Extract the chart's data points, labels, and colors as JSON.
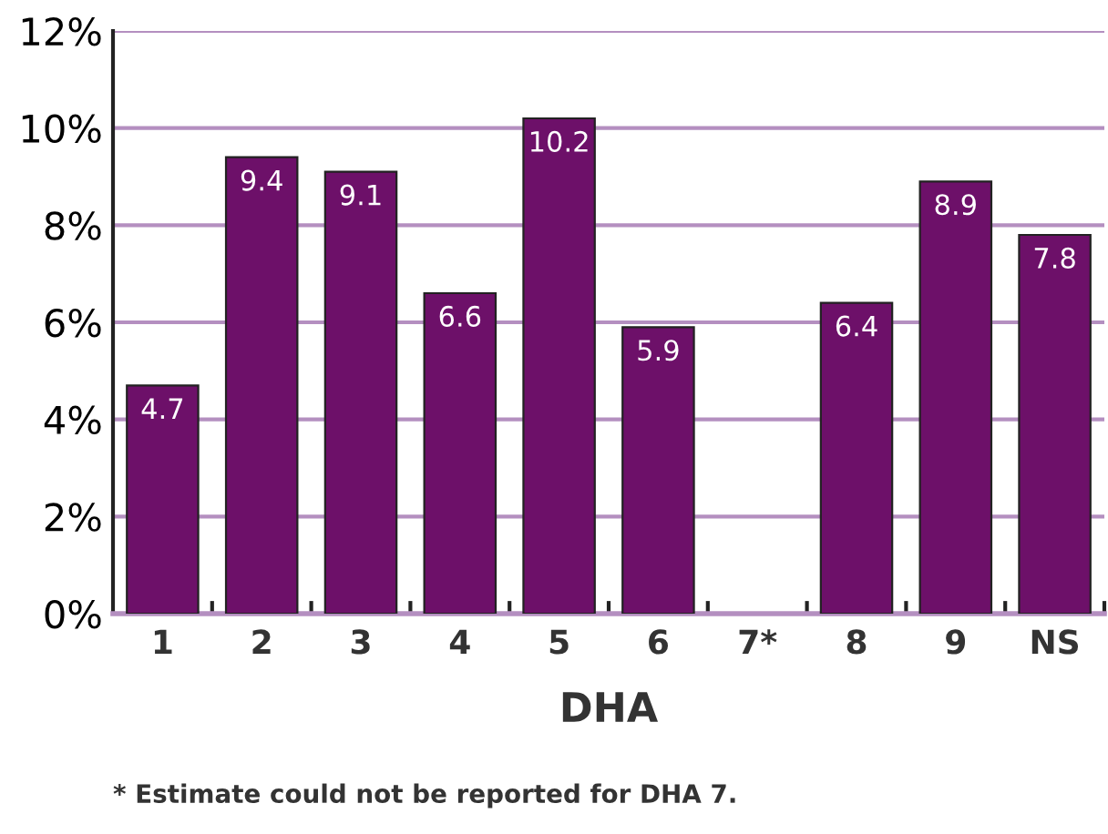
{
  "chart_data": {
    "type": "bar",
    "xlabel": "DHA",
    "categories": [
      "1",
      "2",
      "3",
      "4",
      "5",
      "6",
      "7*",
      "8",
      "9",
      "NS"
    ],
    "values": [
      4.7,
      9.4,
      9.1,
      6.6,
      10.2,
      5.9,
      null,
      6.4,
      8.9,
      7.8
    ],
    "color": "#6d1069",
    "data_labels": true,
    "ylim": [
      0,
      12
    ],
    "yticks": [
      {
        "value": 0,
        "label": "0%"
      },
      {
        "value": 2,
        "label": "2%"
      },
      {
        "value": 4,
        "label": "4%"
      },
      {
        "value": 6,
        "label": "6%"
      },
      {
        "value": 8,
        "label": "8%"
      },
      {
        "value": 10,
        "label": "10%"
      },
      {
        "value": 12,
        "label": "12%"
      }
    ],
    "grid": "y",
    "annotations": [
      "* Estimate could not be reported for DHA 7."
    ]
  }
}
